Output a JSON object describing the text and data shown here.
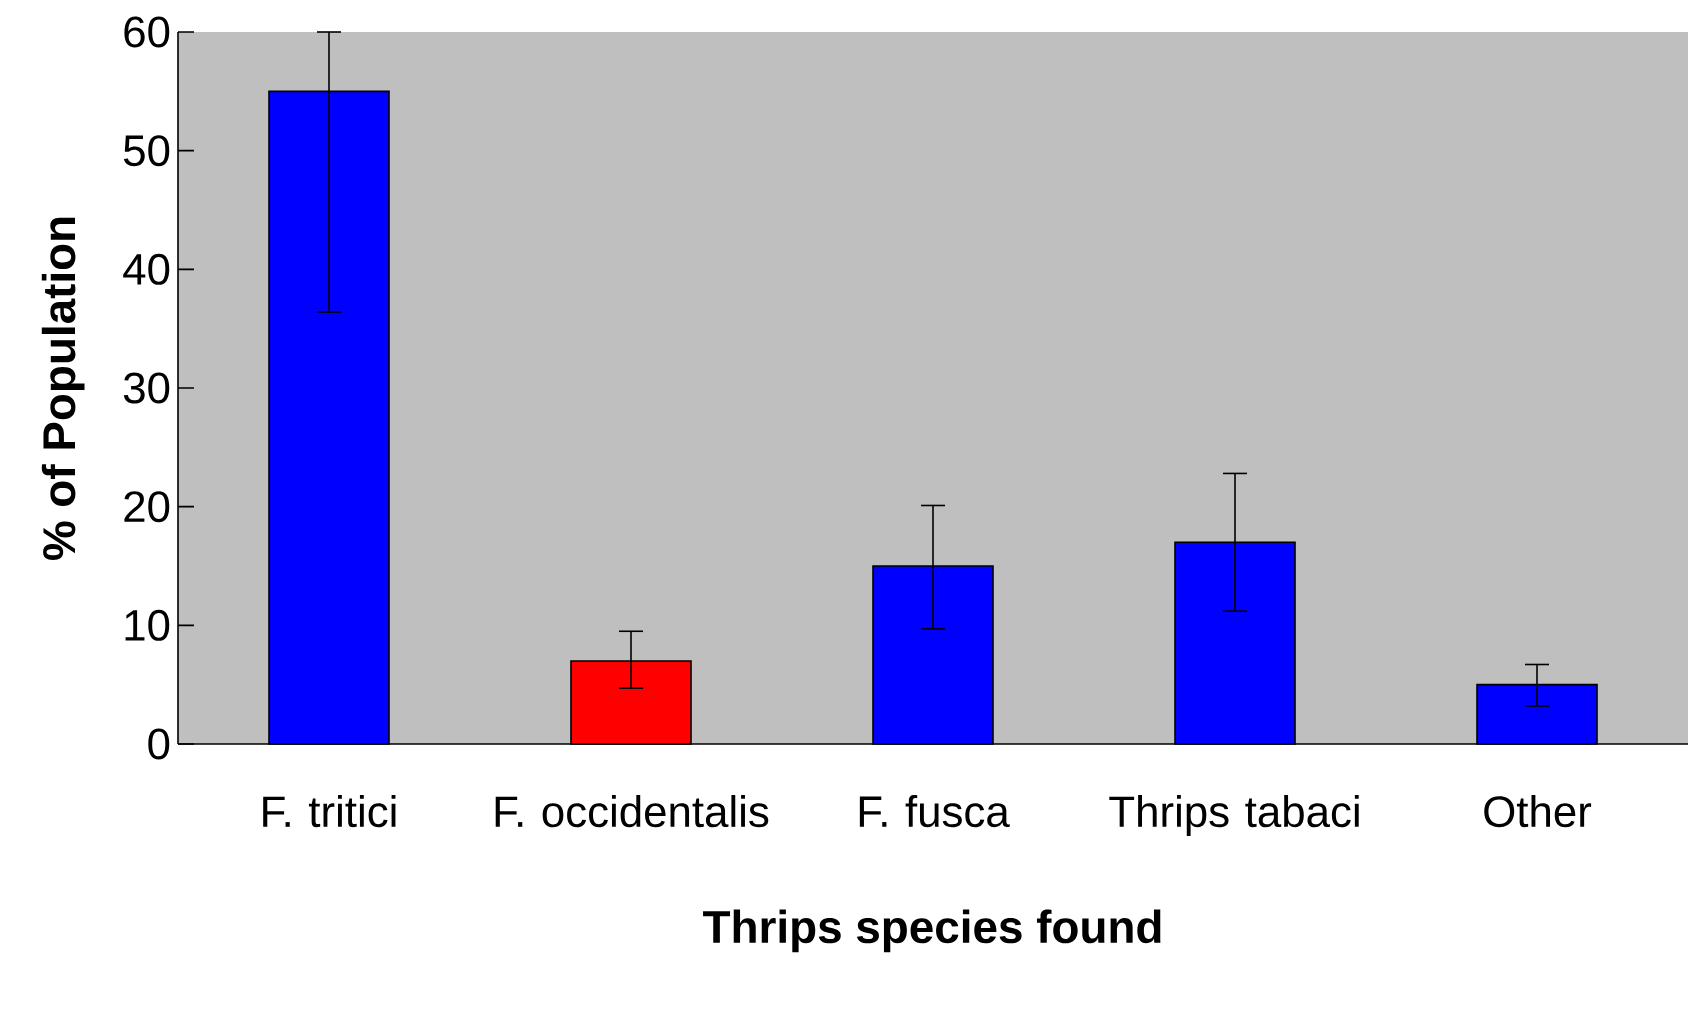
{
  "chart_data": {
    "type": "bar",
    "xlabel": "Thrips species found",
    "ylabel": "% of Population",
    "categories": [
      "F. tritici",
      "F. occidentalis",
      "F. fusca",
      "Thrips tabaci",
      "Other"
    ],
    "values": [
      55,
      7,
      15,
      17,
      5
    ],
    "colors": [
      "#0000ff",
      "#ff0000",
      "#0000ff",
      "#0000ff",
      "#0000ff"
    ],
    "errors": [
      [
        36.4,
        60
      ],
      [
        4.7,
        9.5
      ],
      [
        9.7,
        20.1
      ],
      [
        11.2,
        22.8
      ],
      [
        3.2,
        6.7
      ]
    ],
    "ylim": [
      0,
      60
    ],
    "yticks": [
      0,
      10,
      20,
      30,
      40,
      50,
      60
    ],
    "grid": false
  }
}
